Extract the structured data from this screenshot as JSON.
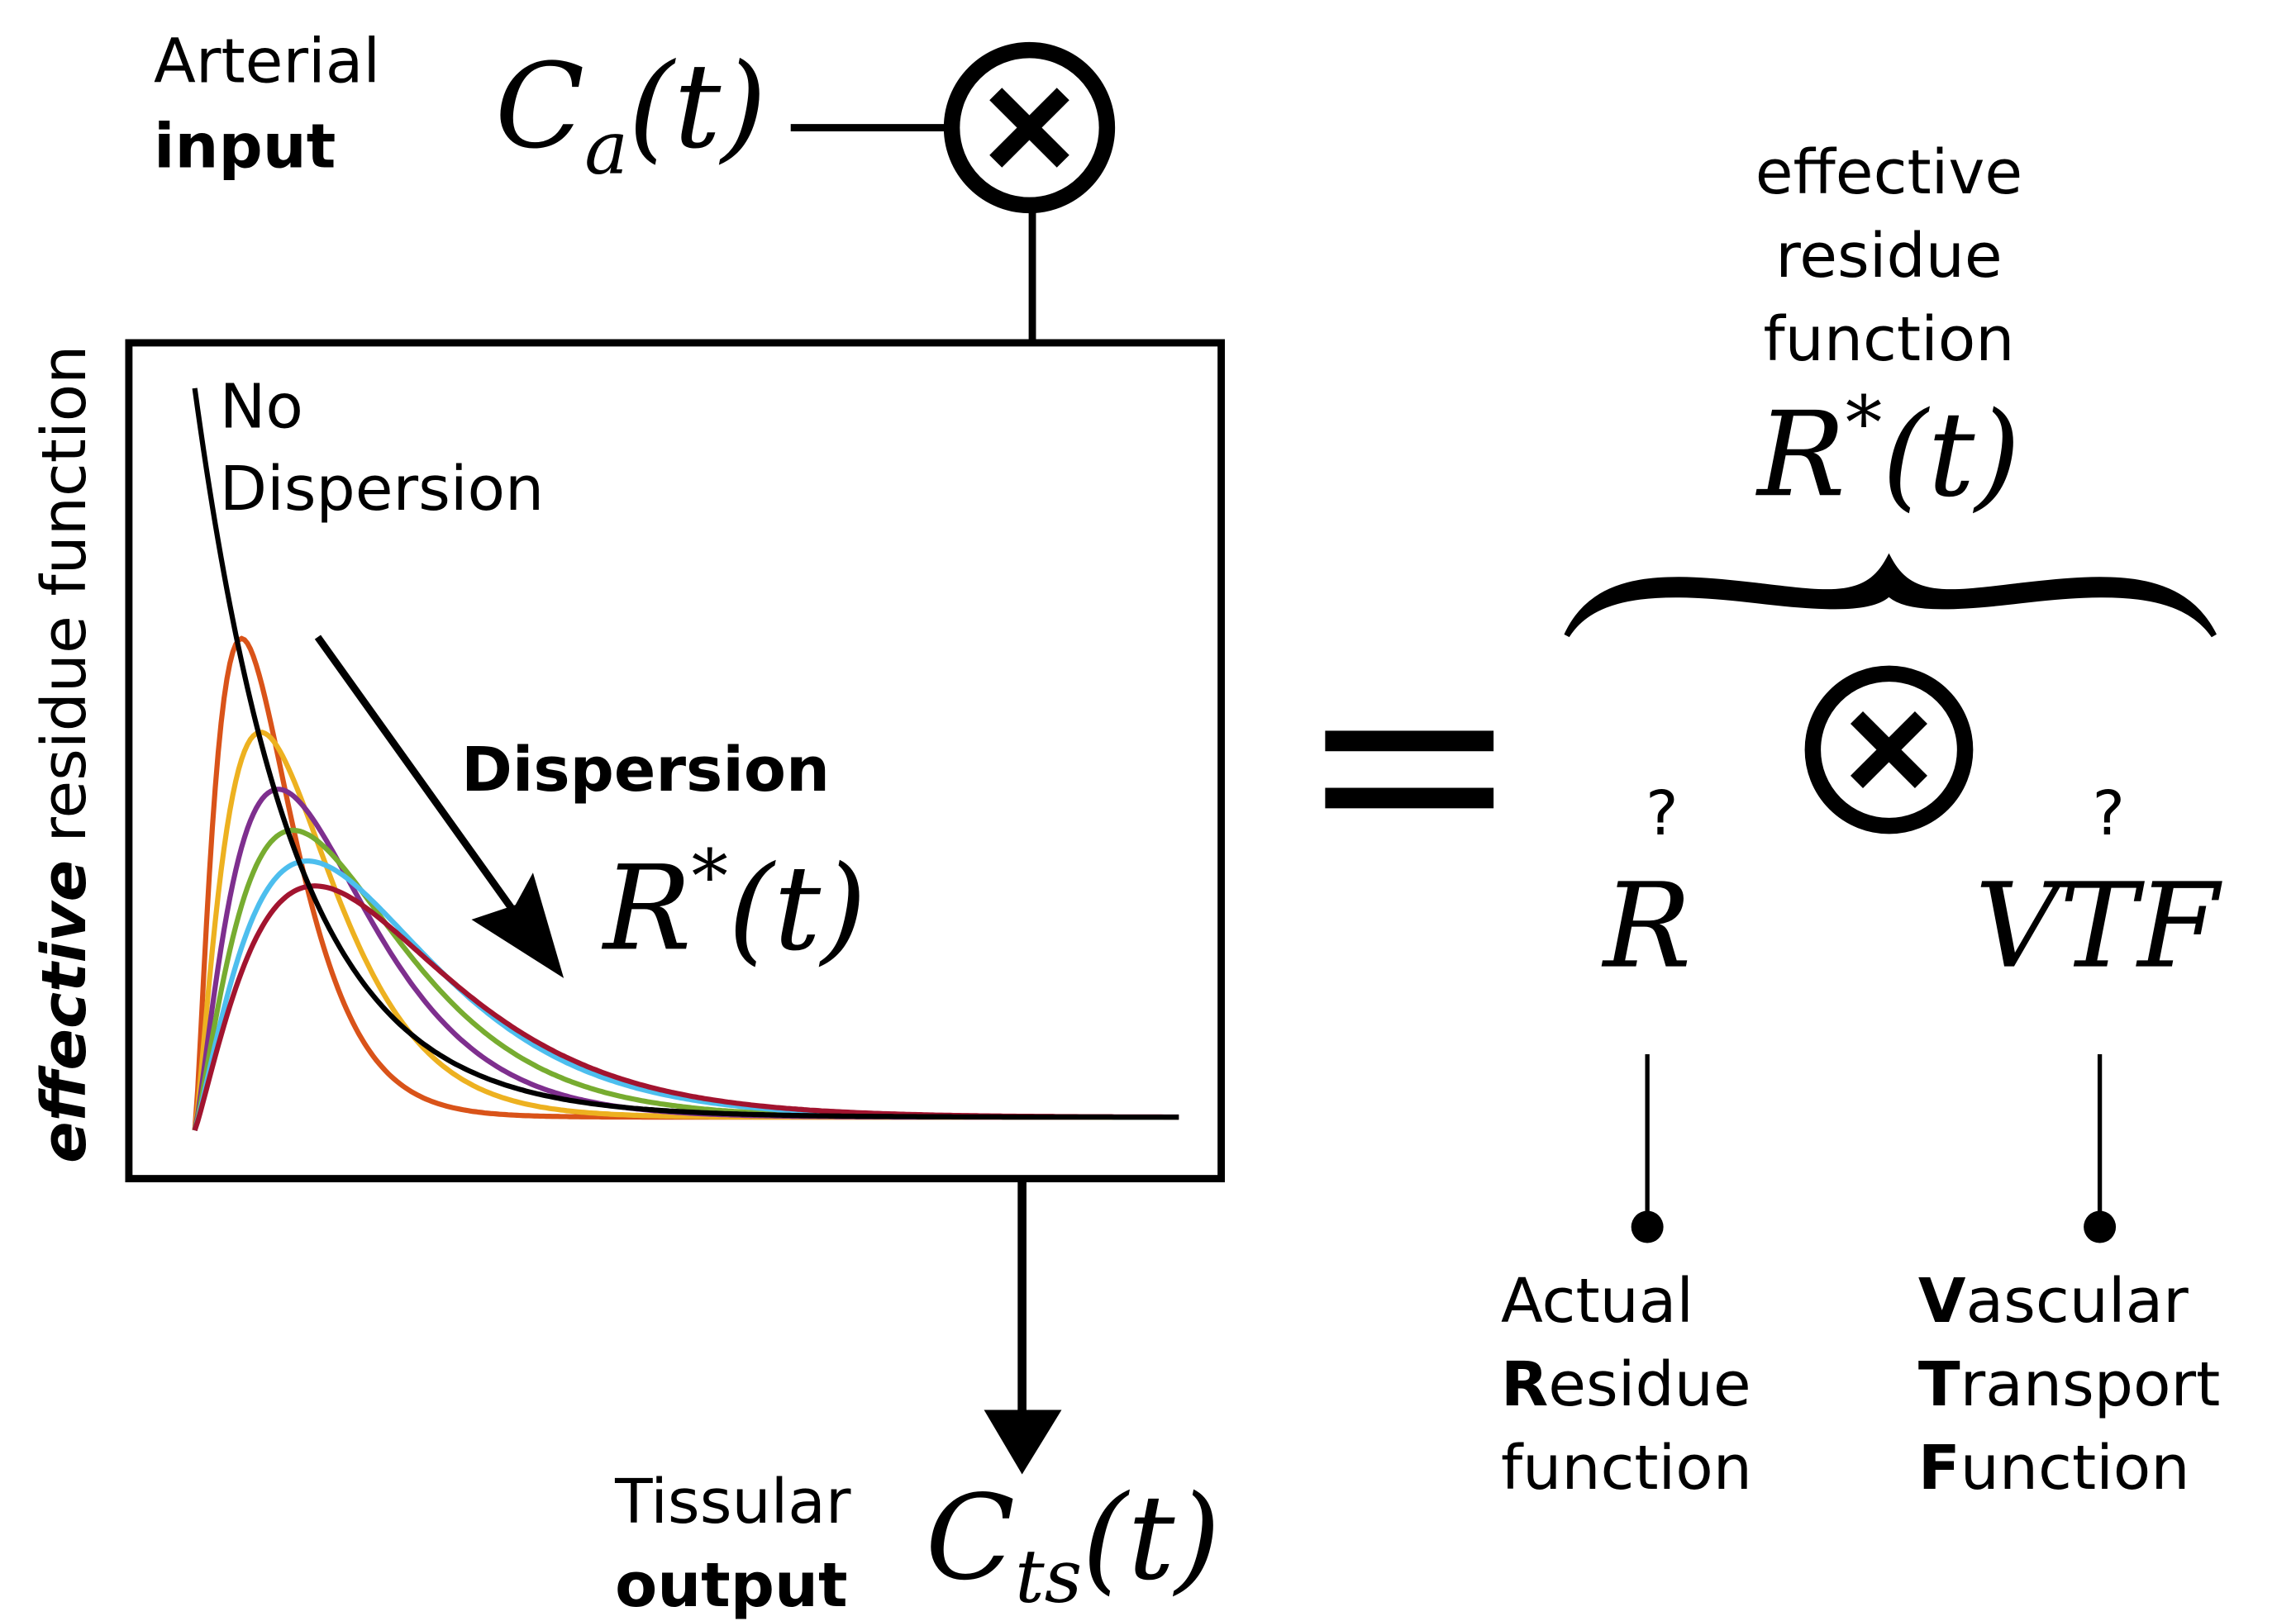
{
  "input": {
    "label": [
      "Arterial",
      "input"
    ],
    "symbol": {
      "base": "C",
      "sub": "a",
      "arg": "(t)"
    }
  },
  "plot": {
    "y_label": {
      "emphasis": "effective",
      "rest": "residue function"
    },
    "no_dispersion": [
      "No",
      "Dispersion"
    ],
    "dispersion": "Dispersion",
    "symbol": {
      "base": "R",
      "sup": "*",
      "arg": "(t)"
    }
  },
  "output": {
    "label": [
      "Tissular",
      "output"
    ],
    "symbol": {
      "base": "C",
      "sub": "ts",
      "arg": "(t)"
    }
  },
  "decomposition": {
    "title": [
      "effective",
      "residue",
      "function"
    ],
    "symbol": {
      "base": "R",
      "sup": "*",
      "arg": "(t)"
    },
    "left": {
      "unknown": "?",
      "symbol": "R",
      "lines": [
        "Actual",
        {
          "bold": "R",
          "rest": "esidue"
        },
        "function"
      ]
    },
    "right": {
      "unknown": "?",
      "symbol": "VTF",
      "lines": [
        {
          "bold": "V",
          "rest": "ascular"
        },
        {
          "bold": "T",
          "rest": "ransport"
        },
        {
          "bold": "F",
          "rest": "unction"
        }
      ]
    }
  }
}
